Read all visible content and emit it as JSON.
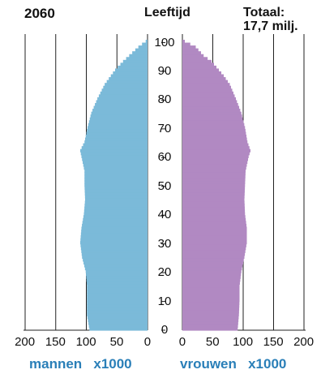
{
  "header": {
    "year": "2060",
    "title": "Leeftijd",
    "total_label": "Totaal:",
    "total_value": "17,7 milj."
  },
  "labels": {
    "men": "mannen",
    "women": "vrouwen",
    "unit": "x1000"
  },
  "colors": {
    "men": "#7bbad9",
    "women": "#b189c2",
    "label": "#2a7fb8",
    "grid": "#222222"
  },
  "chart_data": {
    "type": "bar",
    "orientation": "horizontal",
    "title": "Leeftijd",
    "xlim": [
      0,
      200
    ],
    "x_ticks": [
      "200",
      "150",
      "100",
      "50",
      "0"
    ],
    "x_ticks_women": [
      "0",
      "50",
      "100",
      "150",
      "200"
    ],
    "age_ticks": [
      "0",
      "10",
      "20",
      "30",
      "40",
      "50",
      "60",
      "70",
      "80",
      "90",
      "100"
    ],
    "ages": [
      0,
      5,
      10,
      15,
      20,
      25,
      30,
      35,
      40,
      45,
      50,
      55,
      60,
      62,
      65,
      70,
      75,
      80,
      85,
      88,
      90,
      93,
      95,
      98,
      100
    ],
    "series": [
      {
        "name": "mannen",
        "values": [
          95,
          99,
          99,
          99,
          101,
          107,
          110,
          108,
          104,
          102,
          103,
          103,
          108,
          110,
          103,
          98,
          92,
          82,
          70,
          60,
          53,
          40,
          30,
          15,
          3
        ]
      },
      {
        "name": "vrouwen",
        "values": [
          91,
          93,
          94,
          94,
          97,
          102,
          106,
          106,
          103,
          102,
          103,
          104,
          109,
          112,
          107,
          103,
          97,
          88,
          78,
          68,
          60,
          48,
          35,
          22,
          4
        ]
      }
    ]
  }
}
